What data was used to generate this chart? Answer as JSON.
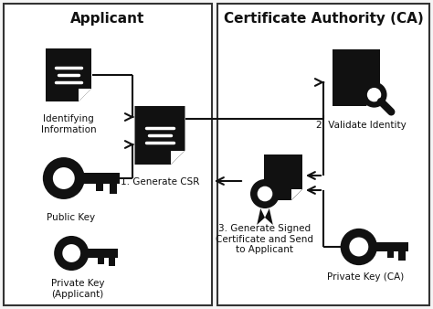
{
  "background_color": "#f5f5f5",
  "border_color": "#333333",
  "icon_color": "#111111",
  "text_color": "#111111",
  "arrow_color": "#111111",
  "title_fontsize": 11,
  "label_fontsize": 7.5,
  "figsize": [
    4.74,
    3.38
  ],
  "dpi": 100,
  "labels": {
    "applicant": "Applicant",
    "ca": "Certificate Authority (CA)",
    "identifying_info": "Identifying\nInformation",
    "public_key": "Public Key",
    "private_key_app": "Private Key\n(Applicant)",
    "generate_csr": "1. Generate CSR",
    "validate_identity": "2. Validate Identity",
    "generate_signed": "3. Generate Signed\nCertificate and Send\nto Applicant",
    "private_key_ca": "Private Key (CA)"
  }
}
